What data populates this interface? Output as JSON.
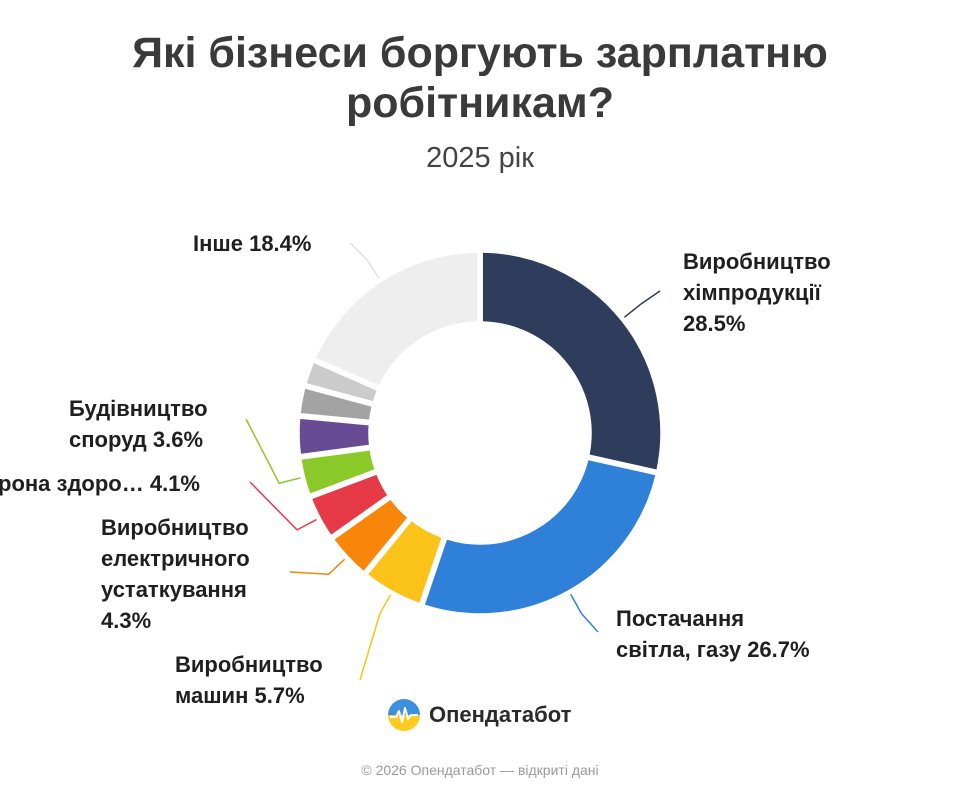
{
  "title_line1": "Які бізнеси боргують зарплатню",
  "title_line2": "робітникам?",
  "subtitle": "2025 рік",
  "brand": {
    "name": "Опендатабот",
    "icon": "opendatabot-logo-icon"
  },
  "footer": "© 2026 Опендатабот — відкриті дані",
  "chart_data": {
    "type": "pie",
    "donut": true,
    "title": "Які бізнеси боргують зарплатню робітникам?",
    "subtitle": "2025 рік",
    "start": "top, clockwise",
    "slices": [
      {
        "label": "Виробництво хімпродукції",
        "value": 28.5,
        "color": "#2f3d5c"
      },
      {
        "label": "Постачання світла, газу",
        "value": 26.7,
        "color": "#2f80d9"
      },
      {
        "label": "Виробництво машин",
        "value": 5.7,
        "color": "#fbc21a"
      },
      {
        "label": "Виробництво електричного устаткування",
        "value": 4.3,
        "color": "#f8860a"
      },
      {
        "label": "…рона здоро…",
        "value": 4.1,
        "color": "#e63a47"
      },
      {
        "label": "Будівництво споруд",
        "value": 3.6,
        "color": "#8bc92a"
      },
      {
        "label": "",
        "value": 3.6,
        "color": "#674b95"
      },
      {
        "label": "",
        "value": 2.7,
        "color": "#a3a3a3"
      },
      {
        "label": "",
        "value": 2.4,
        "color": "#cbcbcb"
      },
      {
        "label": "Інше",
        "value": 18.4,
        "color": "#eeeeee"
      }
    ],
    "labels": [
      {
        "lines": [
          "Виробництво",
          "хімпродукції",
          "28.5%"
        ]
      },
      {
        "lines": [
          "Постачання",
          "світла, газу 26.7%"
        ]
      },
      {
        "lines": [
          "Виробництво",
          "машин 5.7%"
        ]
      },
      {
        "lines": [
          "Виробництво",
          "електричного",
          "устаткування",
          "4.3%"
        ]
      },
      {
        "lines": [
          "рона здоро… 4.1%"
        ]
      },
      {
        "lines": [
          "Будівництво",
          "споруд 3.6%"
        ]
      },
      {
        "lines": [
          "Інше 18.4%"
        ]
      }
    ]
  }
}
